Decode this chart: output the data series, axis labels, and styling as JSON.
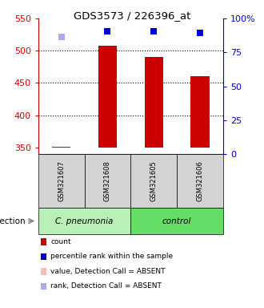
{
  "title": "GDS3573 / 226396_at",
  "samples": [
    "GSM321607",
    "GSM321608",
    "GSM321605",
    "GSM321606"
  ],
  "bar_values": [
    351,
    508,
    491,
    460
  ],
  "bar_color": "#cc0000",
  "bar_base": 350,
  "bar_width": 0.4,
  "percentile_values": [
    521,
    530,
    530,
    528
  ],
  "percentile_absent": [
    true,
    false,
    false,
    false
  ],
  "percentile_color_present": "#0000cc",
  "percentile_color_absent": "#aaaaee",
  "ylim_left": [
    340,
    550
  ],
  "yticks_left": [
    350,
    400,
    450,
    500,
    550
  ],
  "yticks_right_pct": [
    0,
    25,
    50,
    75,
    100
  ],
  "ytick_labels_right": [
    "0",
    "25",
    "50",
    "75",
    "100%"
  ],
  "gridlines": [
    400,
    450,
    500
  ],
  "background_color": "#ffffff",
  "infection_label": "infection",
  "group_info": [
    {
      "name": "C. pneumonia",
      "start": 0,
      "end": 2,
      "color": "#b8f0b8"
    },
    {
      "name": "control",
      "start": 2,
      "end": 4,
      "color": "#66dd66"
    }
  ],
  "legend_colors": [
    "#cc0000",
    "#0000cc",
    "#ffbbbb",
    "#aaaaee"
  ],
  "legend_labels": [
    "count",
    "percentile rank within the sample",
    "value, Detection Call = ABSENT",
    "rank, Detection Call = ABSENT"
  ]
}
